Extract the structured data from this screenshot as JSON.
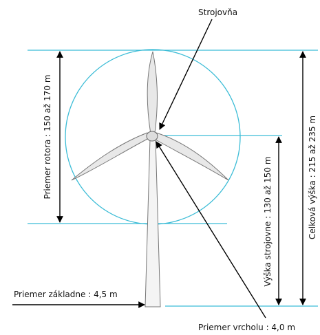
{
  "labels": {
    "nacelle": "Strojovňa",
    "rotor_diameter": "Priemer rotora : 150 až 170 m",
    "hub_height": "Výška strojovne : 130 až 150 m",
    "total_height": "Celková výška : 215 až 235 m",
    "base_diameter": "Priemer základne : 4,5  m",
    "top_diameter": "Priemer vrcholu : 4,0  m"
  }
}
